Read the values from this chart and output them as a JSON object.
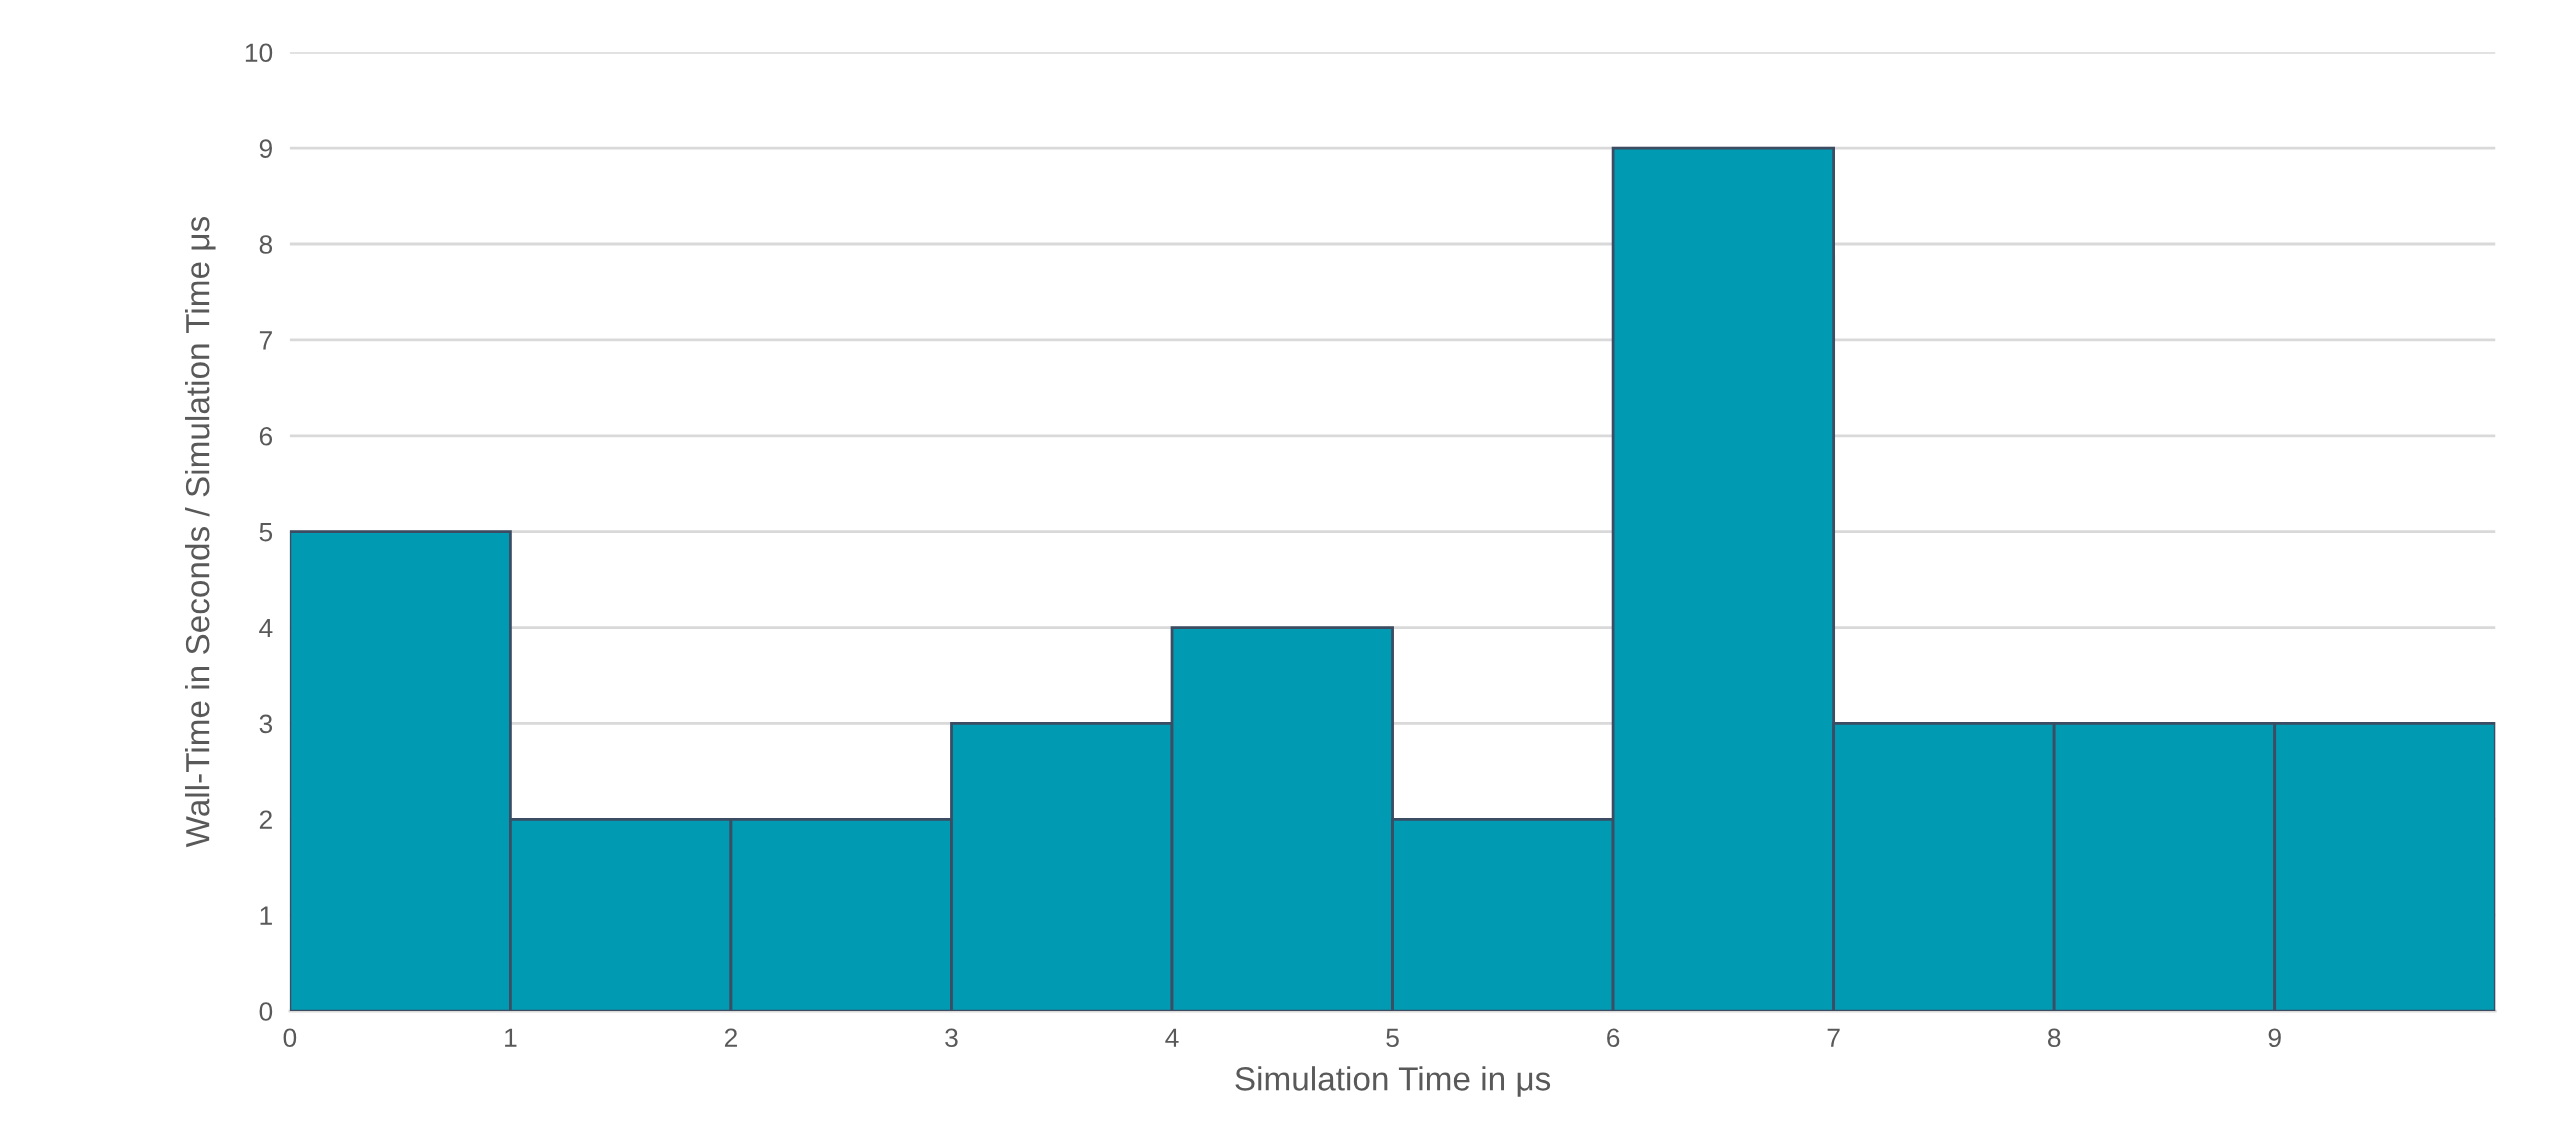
{
  "chart_data": {
    "type": "histogram",
    "xlabel": "Simulation Time in μs",
    "ylabel": "Wall-Time in Seconds / Simulation Time μs",
    "bins": [
      0,
      1,
      2,
      3,
      4,
      5,
      6,
      7,
      8,
      9,
      10
    ],
    "values": [
      5,
      2,
      2,
      3,
      4,
      2,
      9,
      3,
      3,
      3
    ],
    "color": "#009bb3",
    "xlim": [
      0,
      10
    ],
    "xticks": [
      0,
      1,
      2,
      3,
      4,
      5,
      6,
      7,
      8,
      9
    ],
    "ylim": [
      0,
      10
    ],
    "yticks": [
      0,
      1,
      2,
      3,
      4,
      5,
      6,
      7,
      8,
      9,
      10
    ],
    "grid": "y"
  }
}
